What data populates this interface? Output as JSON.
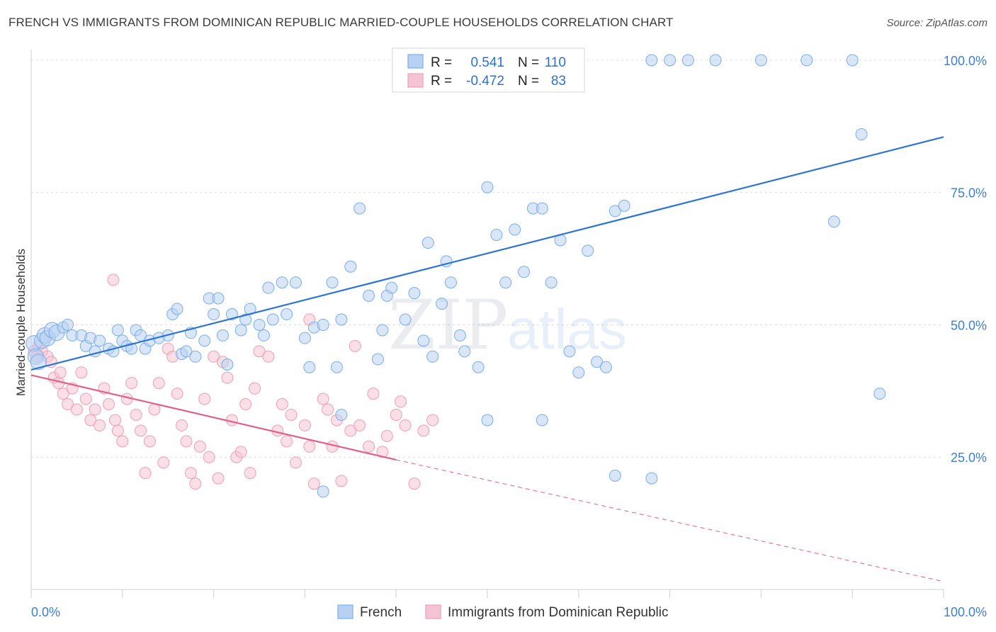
{
  "title": "FRENCH VS IMMIGRANTS FROM DOMINICAN REPUBLIC MARRIED-COUPLE HOUSEHOLDS CORRELATION CHART",
  "source": "Source: ZipAtlas.com",
  "watermark": {
    "zip": "ZIP",
    "atlas": "atlas"
  },
  "legend": {
    "rows": [
      {
        "r_label": "R =",
        "r_value": "0.541",
        "n_label": "N =",
        "n_value": "110",
        "color": "#7aaee8"
      },
      {
        "r_label": "R =",
        "r_value": "-0.472",
        "n_label": "N =",
        "n_value": "83",
        "color": "#f0a0b8"
      }
    ]
  },
  "bottom_legend": [
    "French",
    "Immigrants from Dominican Republic"
  ],
  "colors": {
    "blue_fill": "#b8d1f2",
    "blue_stroke": "#7aaee8",
    "blue_line": "#2e74d0",
    "pink_fill": "#f5c4d3",
    "pink_stroke": "#ec9fb7",
    "pink_line": "#e0608a"
  },
  "chart_data": {
    "type": "scatter",
    "title": "FRENCH VS IMMIGRANTS FROM DOMINICAN REPUBLIC MARRIED-COUPLE HOUSEHOLDS CORRELATION CHART",
    "xlabel": "",
    "ylabel": "Married-couple Households",
    "xlim": [
      0,
      100
    ],
    "ylim": [
      0,
      102
    ],
    "x_tick_labels": [
      "0.0%",
      "100.0%"
    ],
    "y_tick_labels": [
      "100.0%",
      "75.0%",
      "50.0%",
      "25.0%"
    ],
    "y_ticks": [
      100,
      75,
      50,
      25
    ],
    "grid": true,
    "series": [
      {
        "name": "French",
        "trend": {
          "x": [
            0,
            100
          ],
          "y": [
            41.5,
            85.5
          ]
        },
        "points": [
          [
            0.3,
            46.5
          ],
          [
            0.5,
            44
          ],
          [
            0.8,
            43
          ],
          [
            1.2,
            47
          ],
          [
            1.5,
            48
          ],
          [
            1.8,
            47.5
          ],
          [
            2.3,
            49
          ],
          [
            2.8,
            48.5
          ],
          [
            3.5,
            49.5
          ],
          [
            4,
            50
          ],
          [
            4.5,
            48
          ],
          [
            5.5,
            48
          ],
          [
            6,
            46
          ],
          [
            6.5,
            47.5
          ],
          [
            7,
            45
          ],
          [
            7.5,
            47
          ],
          [
            8.5,
            45.5
          ],
          [
            9,
            45
          ],
          [
            9.5,
            49
          ],
          [
            10,
            47
          ],
          [
            10.5,
            46
          ],
          [
            11,
            45.5
          ],
          [
            11.5,
            49
          ],
          [
            12,
            48
          ],
          [
            12.5,
            45.5
          ],
          [
            13,
            47
          ],
          [
            14,
            47.5
          ],
          [
            15,
            48
          ],
          [
            15.5,
            52
          ],
          [
            16,
            53
          ],
          [
            16.5,
            44.5
          ],
          [
            17,
            45
          ],
          [
            17.5,
            48.5
          ],
          [
            18,
            44
          ],
          [
            19,
            47
          ],
          [
            19.5,
            55
          ],
          [
            20,
            52
          ],
          [
            20.5,
            55
          ],
          [
            21,
            48
          ],
          [
            21.5,
            42.5
          ],
          [
            22,
            52
          ],
          [
            23,
            49
          ],
          [
            23.5,
            51
          ],
          [
            24,
            53
          ],
          [
            25,
            50
          ],
          [
            25.5,
            48
          ],
          [
            26,
            57
          ],
          [
            26.5,
            51
          ],
          [
            27.5,
            58
          ],
          [
            28,
            52
          ],
          [
            29,
            58
          ],
          [
            30,
            47.5
          ],
          [
            30.5,
            42
          ],
          [
            31,
            49.5
          ],
          [
            32,
            50
          ],
          [
            33,
            58
          ],
          [
            33.5,
            42
          ],
          [
            34,
            51
          ],
          [
            35,
            61
          ],
          [
            36,
            72
          ],
          [
            37,
            55.5
          ],
          [
            38,
            43.5
          ],
          [
            38.5,
            49
          ],
          [
            39,
            55.5
          ],
          [
            39.5,
            57
          ],
          [
            41,
            51
          ],
          [
            42,
            56
          ],
          [
            43,
            47
          ],
          [
            43.5,
            65.5
          ],
          [
            44,
            44
          ],
          [
            45,
            54
          ],
          [
            45.5,
            62
          ],
          [
            46,
            58
          ],
          [
            47,
            48
          ],
          [
            47.5,
            45
          ],
          [
            49,
            42
          ],
          [
            50,
            76
          ],
          [
            51,
            67
          ],
          [
            52,
            58
          ],
          [
            53,
            68
          ],
          [
            54,
            60
          ],
          [
            55,
            72
          ],
          [
            56,
            72
          ],
          [
            57,
            58
          ],
          [
            58,
            66
          ],
          [
            59,
            45
          ],
          [
            60,
            41
          ],
          [
            61,
            64
          ],
          [
            62,
            43
          ],
          [
            63,
            42
          ],
          [
            64,
            71.5
          ],
          [
            65,
            72.5
          ],
          [
            68,
            100
          ],
          [
            70,
            100
          ],
          [
            72,
            100
          ],
          [
            75,
            100
          ],
          [
            80,
            100
          ],
          [
            85,
            100
          ],
          [
            90,
            100
          ],
          [
            88,
            69.5
          ],
          [
            93,
            37
          ],
          [
            91,
            86
          ],
          [
            64,
            21.5
          ],
          [
            68,
            21
          ],
          [
            32,
            18.5
          ],
          [
            50,
            32
          ],
          [
            56,
            32
          ],
          [
            34,
            33
          ]
        ]
      },
      {
        "name": "Immigrants from Dominican Republic",
        "trend": {
          "x": [
            0,
            40
          ],
          "y": [
            40.5,
            24.5
          ]
        },
        "trend_dashed": {
          "x": [
            40,
            100
          ],
          "y": [
            24.5,
            1.5
          ]
        },
        "points": [
          [
            0.3,
            45
          ],
          [
            0.6,
            44
          ],
          [
            0.8,
            46
          ],
          [
            1.2,
            45
          ],
          [
            1.8,
            44
          ],
          [
            2.2,
            43
          ],
          [
            2.5,
            40
          ],
          [
            3,
            39
          ],
          [
            3.2,
            41
          ],
          [
            3.5,
            37
          ],
          [
            4,
            35
          ],
          [
            4.5,
            38
          ],
          [
            5,
            34
          ],
          [
            5.5,
            41
          ],
          [
            6,
            36
          ],
          [
            6.5,
            32
          ],
          [
            7,
            34
          ],
          [
            7.5,
            31
          ],
          [
            8,
            38
          ],
          [
            8.5,
            35
          ],
          [
            9,
            58.5
          ],
          [
            9.2,
            32
          ],
          [
            9.5,
            30
          ],
          [
            10,
            28
          ],
          [
            10.5,
            36
          ],
          [
            11,
            39
          ],
          [
            11.5,
            33
          ],
          [
            12,
            30
          ],
          [
            12.5,
            22
          ],
          [
            13,
            28
          ],
          [
            13.5,
            34
          ],
          [
            14,
            39
          ],
          [
            14.5,
            24
          ],
          [
            15,
            45.5
          ],
          [
            15.5,
            44
          ],
          [
            16,
            37
          ],
          [
            16.5,
            31
          ],
          [
            17,
            28
          ],
          [
            17.5,
            22
          ],
          [
            18,
            20
          ],
          [
            18.5,
            27
          ],
          [
            19,
            36
          ],
          [
            19.5,
            25
          ],
          [
            20,
            44
          ],
          [
            20.5,
            21
          ],
          [
            21,
            43
          ],
          [
            21.5,
            40
          ],
          [
            22,
            32
          ],
          [
            22.5,
            25
          ],
          [
            23,
            26
          ],
          [
            23.5,
            35
          ],
          [
            24,
            22
          ],
          [
            24.5,
            38
          ],
          [
            25,
            45
          ],
          [
            26,
            44
          ],
          [
            27,
            30
          ],
          [
            27.5,
            35
          ],
          [
            28,
            28
          ],
          [
            28.5,
            33
          ],
          [
            29,
            24
          ],
          [
            30,
            31
          ],
          [
            30.5,
            27
          ],
          [
            31,
            20
          ],
          [
            32,
            36
          ],
          [
            32.5,
            34
          ],
          [
            33,
            27
          ],
          [
            33.5,
            32
          ],
          [
            34,
            20.5
          ],
          [
            35,
            30
          ],
          [
            36,
            31
          ],
          [
            37,
            27
          ],
          [
            37.5,
            37
          ],
          [
            38.5,
            26
          ],
          [
            39,
            29
          ],
          [
            40,
            33
          ],
          [
            40.5,
            35.5
          ],
          [
            41,
            31
          ],
          [
            42,
            20
          ],
          [
            43,
            30
          ],
          [
            44,
            32
          ],
          [
            30.5,
            51
          ],
          [
            35.5,
            46
          ]
        ]
      }
    ]
  }
}
